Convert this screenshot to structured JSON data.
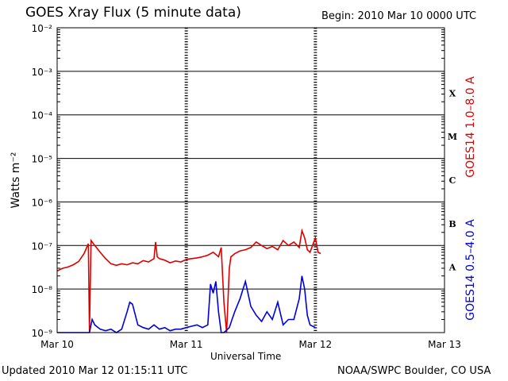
{
  "header": {
    "title": "GOES Xray Flux (5 minute data)",
    "begin": "Begin:  2010 Mar 10 0000 UTC"
  },
  "footer": {
    "updated": "Updated 2010 Mar 12 01:15:11 UTC",
    "credit": "NOAA/SWPC Boulder, CO USA"
  },
  "colors": {
    "long_channel": "#dd0000",
    "short_channel": "#0000dd",
    "grid": "#000000"
  },
  "chart_data": {
    "type": "line",
    "title": "GOES Xray Flux (5 minute data)",
    "xlabel": "Universal Time",
    "ylabel": "Watts m⁻²",
    "yscale": "log",
    "ylim": [
      1e-09,
      0.01
    ],
    "xlim_hours": [
      0,
      72
    ],
    "x_ticks": [
      {
        "hour": 0,
        "label": "Mar 10"
      },
      {
        "hour": 24,
        "label": "Mar 11"
      },
      {
        "hour": 48,
        "label": "Mar 12"
      },
      {
        "hour": 72,
        "label": "Mar 13"
      }
    ],
    "y_ticks": [
      {
        "exp": -9,
        "label": "10⁻⁹"
      },
      {
        "exp": -8,
        "label": "10⁻⁸"
      },
      {
        "exp": -7,
        "label": "10⁻⁷"
      },
      {
        "exp": -6,
        "label": "10⁻⁶"
      },
      {
        "exp": -5,
        "label": "10⁻⁵"
      },
      {
        "exp": -4,
        "label": "10⁻⁴"
      },
      {
        "exp": -3,
        "label": "10⁻³"
      },
      {
        "exp": -2,
        "label": "10⁻²"
      }
    ],
    "flare_classes": [
      {
        "label": "A",
        "exp": -7.5
      },
      {
        "label": "B",
        "exp": -6.5
      },
      {
        "label": "C",
        "exp": -5.5
      },
      {
        "label": "M",
        "exp": -4.5
      },
      {
        "label": "X",
        "exp": -3.5
      }
    ],
    "grid": true,
    "series": [
      {
        "name": "GOES14 1.0–8.0 A",
        "color": "#dd0000",
        "x_hours": [
          0,
          1,
          2,
          3,
          4,
          5,
          5.8,
          6,
          6.3,
          7,
          8,
          9,
          10,
          11,
          12,
          13,
          14,
          15,
          16,
          17,
          18,
          18.3,
          18.6,
          19,
          20,
          21,
          22,
          23,
          24,
          25,
          26,
          27,
          28,
          29,
          30,
          30.5,
          31,
          31.5,
          32,
          32.3,
          32.7,
          33,
          34,
          35,
          36,
          37,
          38,
          39,
          40,
          41,
          42,
          43,
          44,
          45,
          45.5,
          46,
          46.5,
          47,
          48,
          48.5,
          49
        ],
        "values": [
          2.6e-08,
          3e-08,
          3.2e-08,
          3.6e-08,
          4.3e-08,
          6.5e-08,
          1.1e-07,
          1e-09,
          1.3e-07,
          1e-07,
          7e-08,
          5e-08,
          3.8e-08,
          3.5e-08,
          3.8e-08,
          3.6e-08,
          4e-08,
          3.8e-08,
          4.5e-08,
          4.2e-08,
          5e-08,
          1.2e-07,
          5.5e-08,
          5e-08,
          4.6e-08,
          4e-08,
          4.4e-08,
          4.2e-08,
          4.8e-08,
          5e-08,
          5.2e-08,
          5.5e-08,
          6e-08,
          7e-08,
          5.5e-08,
          9e-08,
          5e-09,
          1e-09,
          3e-08,
          5.5e-08,
          6e-08,
          6.5e-08,
          7.5e-08,
          8e-08,
          9e-08,
          1.2e-07,
          1e-07,
          8.5e-08,
          9.5e-08,
          8e-08,
          1.3e-07,
          1e-07,
          1.2e-07,
          9e-08,
          2.2e-07,
          1.5e-07,
          8e-08,
          7e-08,
          1.5e-07,
          7e-08,
          6.5e-08
        ]
      },
      {
        "name": "GOES14 0.5–4.0 A",
        "color": "#0000dd",
        "x_hours": [
          0,
          3,
          5,
          5.8,
          6,
          6.5,
          7,
          8,
          9,
          10,
          11,
          12,
          13,
          13.5,
          14,
          15,
          16,
          17,
          18,
          19,
          20,
          21,
          22,
          23,
          24,
          25,
          26,
          27,
          28,
          28.5,
          29,
          29.5,
          30,
          30.5,
          31,
          32,
          32.5,
          33,
          34,
          35,
          36,
          37,
          38,
          39,
          40,
          41,
          42,
          43,
          44,
          45,
          45.5,
          46,
          46.5,
          47,
          48
        ],
        "values": [
          1e-09,
          1e-09,
          1e-09,
          1e-09,
          1e-09,
          2e-09,
          1.5e-09,
          1.2e-09,
          1.1e-09,
          1.2e-09,
          1e-09,
          1.2e-09,
          3e-09,
          5e-09,
          4.5e-09,
          1.5e-09,
          1.3e-09,
          1.2e-09,
          1.5e-09,
          1.2e-09,
          1.3e-09,
          1.1e-09,
          1.2e-09,
          1.2e-09,
          1.3e-09,
          1.4e-09,
          1.5e-09,
          1.3e-09,
          1.5e-09,
          1.3e-08,
          8e-09,
          1.5e-08,
          3e-09,
          1e-09,
          1e-09,
          1.3e-09,
          2e-09,
          3e-09,
          6e-09,
          1.5e-08,
          4e-09,
          2.5e-09,
          1.8e-09,
          3e-09,
          2e-09,
          5e-09,
          1.5e-09,
          2e-09,
          2e-09,
          6e-09,
          2e-08,
          1e-08,
          2.5e-09,
          1.5e-09,
          1.3e-09
        ]
      }
    ]
  }
}
